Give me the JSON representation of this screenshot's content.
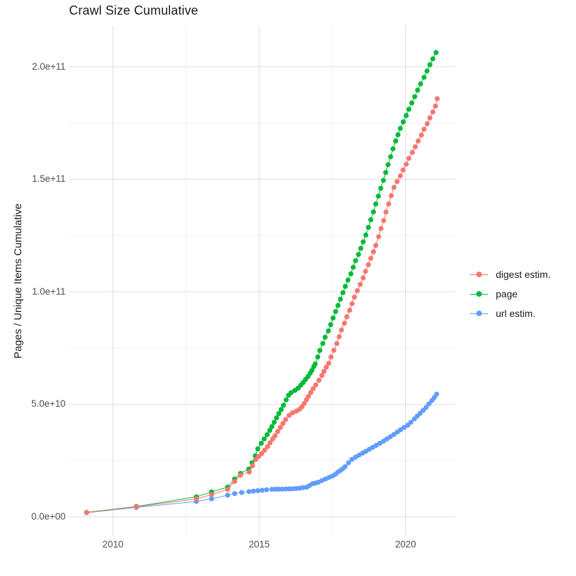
{
  "chart_data": {
    "type": "scatter",
    "title": "Crawl Size Cumulative",
    "xlabel": "",
    "ylabel": "Pages / Unique Items Cumulative",
    "values_unit": "1e9",
    "xlim": [
      2008.5,
      2021.7
    ],
    "ylim": [
      -8.35,
      218.2
    ],
    "x_ticks": [
      {
        "v": 2010,
        "label": "2010"
      },
      {
        "v": 2015,
        "label": "2015"
      },
      {
        "v": 2020,
        "label": "2020"
      }
    ],
    "x_minor": [
      2012.5,
      2017.5
    ],
    "y_ticks": [
      {
        "v": 0,
        "label": "0.0e+00"
      },
      {
        "v": 50,
        "label": "5.0e+10"
      },
      {
        "v": 100,
        "label": "1.0e+11"
      },
      {
        "v": 150,
        "label": "1.5e+11"
      },
      {
        "v": 200,
        "label": "2.0e+11"
      }
    ],
    "y_minor": [
      25,
      75,
      125,
      175
    ],
    "grid": {
      "major_color": "#e3e3e3",
      "minor_color": "#f1f1f1"
    },
    "legend_position": "right",
    "series": [
      {
        "name": "digest estim.",
        "color": "#F8766D",
        "points": [
          [
            2009.1,
            1.9
          ],
          [
            2010.8,
            4.4
          ],
          [
            2012.85,
            8.0
          ],
          [
            2013.37,
            9.9
          ],
          [
            2013.92,
            12.2
          ],
          [
            2014.16,
            15.7
          ],
          [
            2014.36,
            18.5
          ],
          [
            2014.66,
            19.9
          ],
          [
            2014.77,
            22.7
          ],
          [
            2014.88,
            25.5
          ],
          [
            2014.98,
            26.8
          ],
          [
            2015.08,
            28.1
          ],
          [
            2015.18,
            29.6
          ],
          [
            2015.28,
            31.2
          ],
          [
            2015.37,
            32.9
          ],
          [
            2015.46,
            34.6
          ],
          [
            2015.54,
            36.0
          ],
          [
            2015.63,
            37.9
          ],
          [
            2015.72,
            39.7
          ],
          [
            2015.81,
            41.5
          ],
          [
            2015.9,
            43.2
          ],
          [
            2016.02,
            45.1
          ],
          [
            2016.14,
            46.2
          ],
          [
            2016.27,
            47.0
          ],
          [
            2016.38,
            47.9
          ],
          [
            2016.46,
            48.9
          ],
          [
            2016.54,
            50.4
          ],
          [
            2016.61,
            52.0
          ],
          [
            2016.68,
            53.5
          ],
          [
            2016.76,
            55.2
          ],
          [
            2016.84,
            56.9
          ],
          [
            2016.93,
            58.6
          ],
          [
            2017.04,
            60.7
          ],
          [
            2017.14,
            62.8
          ],
          [
            2017.21,
            64.6
          ],
          [
            2017.29,
            66.5
          ],
          [
            2017.37,
            68.2
          ],
          [
            2017.45,
            71.0
          ],
          [
            2017.55,
            74.0
          ],
          [
            2017.65,
            77.0
          ],
          [
            2017.73,
            80.0
          ],
          [
            2017.81,
            83.0
          ],
          [
            2017.91,
            86.0
          ],
          [
            2017.99,
            88.9
          ],
          [
            2018.09,
            91.8
          ],
          [
            2018.17,
            94.7
          ],
          [
            2018.25,
            97.6
          ],
          [
            2018.35,
            100.5
          ],
          [
            2018.45,
            103.3
          ],
          [
            2018.55,
            106.2
          ],
          [
            2018.63,
            109.1
          ],
          [
            2018.73,
            112.0
          ],
          [
            2018.81,
            114.9
          ],
          [
            2018.9,
            117.8
          ],
          [
            2018.98,
            120.6
          ],
          [
            2019.08,
            124.5
          ],
          [
            2019.16,
            128.1
          ],
          [
            2019.25,
            131.7
          ],
          [
            2019.33,
            135.4
          ],
          [
            2019.42,
            139.0
          ],
          [
            2019.51,
            142.7
          ],
          [
            2019.6,
            146.4
          ],
          [
            2019.71,
            149.0
          ],
          [
            2019.82,
            151.5
          ],
          [
            2019.91,
            154.1
          ],
          [
            2020.02,
            156.7
          ],
          [
            2020.11,
            159.3
          ],
          [
            2020.23,
            161.9
          ],
          [
            2020.33,
            164.4
          ],
          [
            2020.43,
            167.0
          ],
          [
            2020.54,
            169.6
          ],
          [
            2020.63,
            172.2
          ],
          [
            2020.74,
            174.7
          ],
          [
            2020.83,
            177.3
          ],
          [
            2020.93,
            179.9
          ],
          [
            2021.02,
            182.5
          ],
          [
            2021.08,
            185.8
          ]
        ]
      },
      {
        "name": "page",
        "color": "#00BA38",
        "points": [
          [
            2009.1,
            2.0
          ],
          [
            2010.8,
            4.6
          ],
          [
            2012.85,
            8.9
          ],
          [
            2013.37,
            11.1
          ],
          [
            2013.92,
            13.2
          ],
          [
            2014.16,
            16.8
          ],
          [
            2014.36,
            19.3
          ],
          [
            2014.64,
            21.2
          ],
          [
            2014.75,
            24.0
          ],
          [
            2014.86,
            27.1
          ],
          [
            2014.95,
            30.2
          ],
          [
            2015.07,
            32.7
          ],
          [
            2015.17,
            34.6
          ],
          [
            2015.27,
            36.5
          ],
          [
            2015.36,
            38.4
          ],
          [
            2015.43,
            40.1
          ],
          [
            2015.51,
            42.0
          ],
          [
            2015.59,
            44.0
          ],
          [
            2015.67,
            45.9
          ],
          [
            2015.75,
            47.7
          ],
          [
            2015.83,
            49.6
          ],
          [
            2015.92,
            52.0
          ],
          [
            2016.0,
            54.0
          ],
          [
            2016.09,
            55.2
          ],
          [
            2016.22,
            56.2
          ],
          [
            2016.33,
            57.2
          ],
          [
            2016.42,
            58.5
          ],
          [
            2016.5,
            59.7
          ],
          [
            2016.58,
            61.0
          ],
          [
            2016.66,
            62.3
          ],
          [
            2016.74,
            63.8
          ],
          [
            2016.8,
            65.1
          ],
          [
            2016.86,
            66.7
          ],
          [
            2016.91,
            67.9
          ],
          [
            2017.0,
            71.0
          ],
          [
            2017.07,
            73.9
          ],
          [
            2017.17,
            77.0
          ],
          [
            2017.25,
            79.8
          ],
          [
            2017.36,
            82.6
          ],
          [
            2017.44,
            85.4
          ],
          [
            2017.52,
            88.3
          ],
          [
            2017.61,
            91.2
          ],
          [
            2017.69,
            93.9
          ],
          [
            2017.77,
            96.7
          ],
          [
            2017.86,
            99.6
          ],
          [
            2017.94,
            102.4
          ],
          [
            2018.03,
            105.2
          ],
          [
            2018.13,
            108.0
          ],
          [
            2018.21,
            110.9
          ],
          [
            2018.29,
            113.8
          ],
          [
            2018.39,
            116.6
          ],
          [
            2018.47,
            119.3
          ],
          [
            2018.55,
            122.2
          ],
          [
            2018.64,
            125.2
          ],
          [
            2018.73,
            128.6
          ],
          [
            2018.81,
            132.0
          ],
          [
            2018.9,
            135.5
          ],
          [
            2018.98,
            139.0
          ],
          [
            2019.07,
            142.5
          ],
          [
            2019.15,
            146.0
          ],
          [
            2019.24,
            149.5
          ],
          [
            2019.32,
            153.0
          ],
          [
            2019.4,
            156.5
          ],
          [
            2019.49,
            160.0
          ],
          [
            2019.57,
            163.5
          ],
          [
            2019.66,
            167.0
          ],
          [
            2019.74,
            169.8
          ],
          [
            2019.82,
            172.6
          ],
          [
            2019.92,
            175.5
          ],
          [
            2020.02,
            178.3
          ],
          [
            2020.11,
            181.1
          ],
          [
            2020.21,
            183.9
          ],
          [
            2020.31,
            186.7
          ],
          [
            2020.41,
            189.6
          ],
          [
            2020.51,
            192.4
          ],
          [
            2020.63,
            195.3
          ],
          [
            2020.73,
            198.1
          ],
          [
            2020.83,
            200.9
          ],
          [
            2020.93,
            203.5
          ],
          [
            2021.04,
            206.3
          ]
        ]
      },
      {
        "name": "url estim.",
        "color": "#619CFF",
        "points": [
          [
            2009.1,
            1.8
          ],
          [
            2010.8,
            4.2
          ],
          [
            2012.85,
            6.8
          ],
          [
            2013.37,
            8.0
          ],
          [
            2013.92,
            9.6
          ],
          [
            2014.16,
            10.3
          ],
          [
            2014.4,
            10.8
          ],
          [
            2014.65,
            11.2
          ],
          [
            2014.8,
            11.4
          ],
          [
            2014.95,
            11.6
          ],
          [
            2015.1,
            11.8
          ],
          [
            2015.25,
            12.0
          ],
          [
            2015.43,
            12.2
          ],
          [
            2015.55,
            12.25
          ],
          [
            2015.66,
            12.3
          ],
          [
            2015.78,
            12.3
          ],
          [
            2015.9,
            12.35
          ],
          [
            2016.02,
            12.4
          ],
          [
            2016.14,
            12.45
          ],
          [
            2016.26,
            12.6
          ],
          [
            2016.38,
            12.7
          ],
          [
            2016.5,
            13.0
          ],
          [
            2016.62,
            13.2
          ],
          [
            2016.72,
            13.9
          ],
          [
            2016.82,
            14.7
          ],
          [
            2016.92,
            15.0
          ],
          [
            2017.02,
            15.4
          ],
          [
            2017.14,
            16.1
          ],
          [
            2017.26,
            16.8
          ],
          [
            2017.38,
            17.5
          ],
          [
            2017.5,
            18.1
          ],
          [
            2017.6,
            18.9
          ],
          [
            2017.69,
            19.9
          ],
          [
            2017.77,
            20.6
          ],
          [
            2017.85,
            21.3
          ],
          [
            2017.93,
            22.3
          ],
          [
            2018.05,
            24.0
          ],
          [
            2018.17,
            25.5
          ],
          [
            2018.29,
            26.5
          ],
          [
            2018.41,
            27.4
          ],
          [
            2018.53,
            28.3
          ],
          [
            2018.64,
            29.1
          ],
          [
            2018.76,
            30.0
          ],
          [
            2018.88,
            30.9
          ],
          [
            2019.0,
            31.8
          ],
          [
            2019.12,
            32.7
          ],
          [
            2019.24,
            33.6
          ],
          [
            2019.36,
            34.6
          ],
          [
            2019.48,
            35.6
          ],
          [
            2019.6,
            36.6
          ],
          [
            2019.72,
            37.7
          ],
          [
            2019.83,
            38.7
          ],
          [
            2019.95,
            39.7
          ],
          [
            2020.07,
            40.7
          ],
          [
            2020.18,
            42.0
          ],
          [
            2020.3,
            43.5
          ],
          [
            2020.4,
            44.8
          ],
          [
            2020.5,
            46.0
          ],
          [
            2020.6,
            47.3
          ],
          [
            2020.7,
            48.6
          ],
          [
            2020.8,
            50.2
          ],
          [
            2020.9,
            51.7
          ],
          [
            2020.98,
            53.0
          ],
          [
            2021.06,
            54.5
          ]
        ]
      }
    ]
  }
}
